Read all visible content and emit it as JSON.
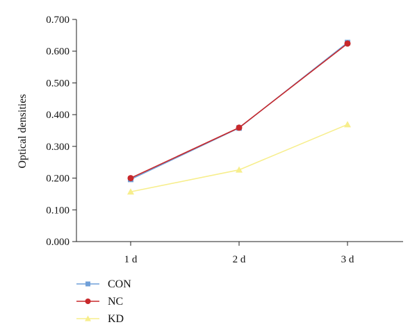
{
  "chart_data": {
    "type": "line",
    "categories": [
      "1 d",
      "2 d",
      "3 d"
    ],
    "y_ticks": [
      "0.000",
      "0.100",
      "0.200",
      "0.300",
      "0.400",
      "0.500",
      "0.600",
      "0.700"
    ],
    "ylim": [
      0,
      0.7
    ],
    "ylabel": "Optical densities",
    "xlabel": "",
    "grid": false,
    "legend_position": "bottom-left",
    "series": [
      {
        "name": "CON",
        "values": [
          0.196,
          0.358,
          0.627
        ],
        "color": "#6f9fd8",
        "marker": "square"
      },
      {
        "name": "NC",
        "values": [
          0.2,
          0.359,
          0.624
        ],
        "color": "#c8282b",
        "marker": "circle"
      },
      {
        "name": "KD",
        "values": [
          0.157,
          0.226,
          0.369
        ],
        "color": "#f7ee8c",
        "marker": "triangle"
      }
    ]
  }
}
